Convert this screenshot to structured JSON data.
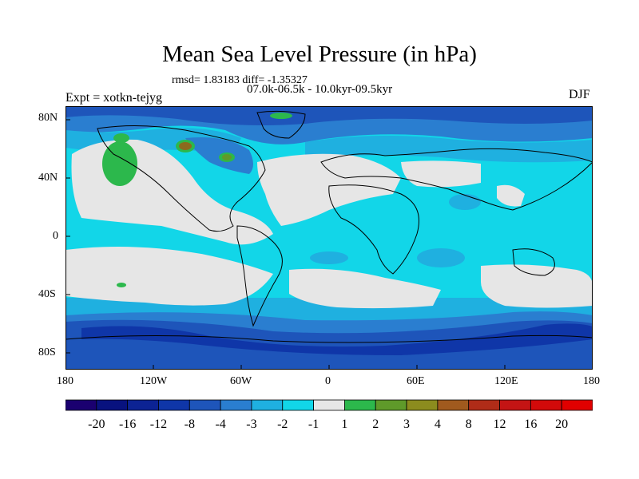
{
  "figure": {
    "title": "Mean Sea Level Pressure (in hPa)",
    "stats_line": "rmsd= 1.83183 diff= -1.35327",
    "subtitle": "07.0k-06.5k - 10.0kyr-09.5kyr",
    "left_label": "Expt = xotkn-tejyg",
    "right_label": "DJF"
  },
  "axes": {
    "y_ticks": [
      "80N",
      "40N",
      "0",
      "40S",
      "80S"
    ],
    "x_ticks": [
      "180",
      "120W",
      "60W",
      "0",
      "60E",
      "120E",
      "180"
    ]
  },
  "colorbar": {
    "levels": [
      "-20",
      "-16",
      "-12",
      "-8",
      "-4",
      "-3",
      "-2",
      "-1",
      "1",
      "2",
      "3",
      "4",
      "8",
      "12",
      "16",
      "20"
    ],
    "colors": [
      "#1a0070",
      "#08127f",
      "#0c2394",
      "#0f36a8",
      "#1e55ba",
      "#2a7ed0",
      "#1fb0e0",
      "#12d6e8",
      "#e6e6e6",
      "#2cb84c",
      "#5f9a2a",
      "#8c8c1e",
      "#a05a1e",
      "#b02c18",
      "#c41414",
      "#d20a0a",
      "#e00000"
    ]
  },
  "map": {
    "colors": {
      "neutral": "#e6e6e6",
      "light_cyan": "#12d6e8",
      "sky": "#1fb0e0",
      "blue": "#2a7ed0",
      "mid_blue": "#1e55ba",
      "dark_blue": "#0f36a8",
      "green": "#2cb84c",
      "olive": "#5f9a2a",
      "brown": "#8c6a1e"
    }
  }
}
